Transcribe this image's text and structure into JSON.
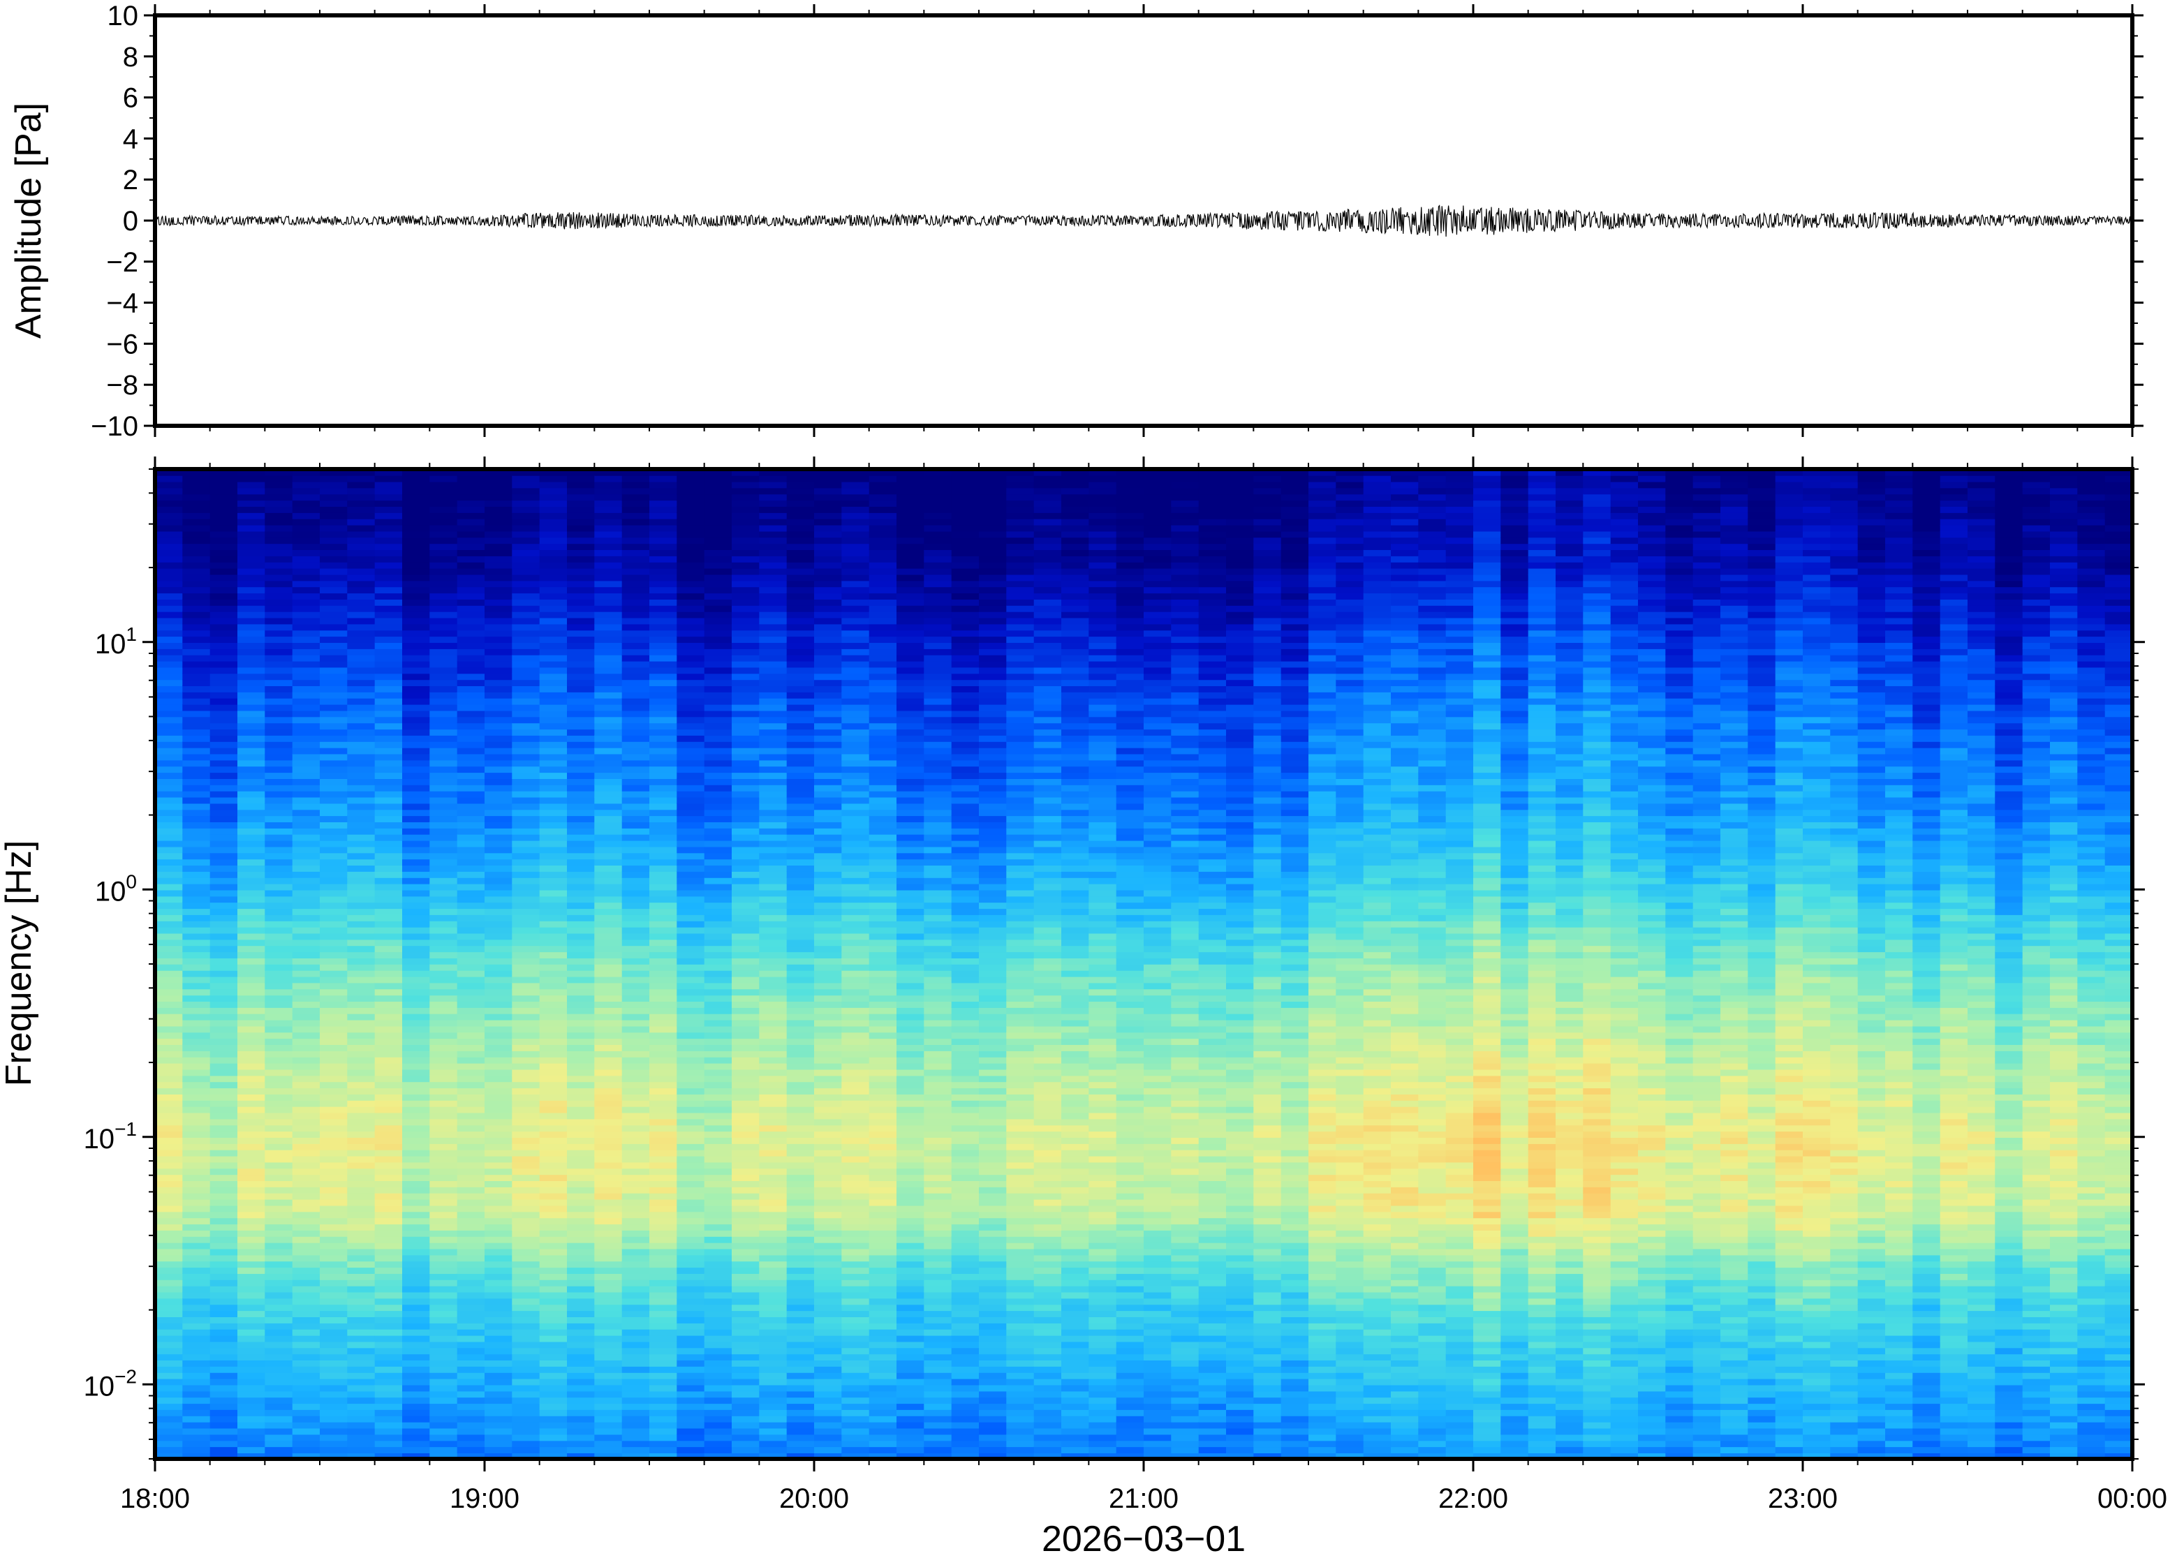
{
  "chart_data": [
    {
      "type": "line",
      "panel": "waveform",
      "ylabel": "Amplitude [Pa]",
      "xlabel": "",
      "ylim": [
        -10,
        10
      ],
      "yticks": [
        10,
        8,
        6,
        4,
        2,
        0,
        -2,
        -4,
        -6,
        -8,
        -10
      ],
      "ytick_labels": [
        "10",
        "8",
        "6",
        "4",
        "2",
        "0",
        "−2",
        "−4",
        "−6",
        "−8",
        "−10"
      ],
      "xlim": [
        "18:00",
        "00:00"
      ],
      "grid": false,
      "series": [
        {
          "color": "#000000",
          "x": [
            "18:00",
            "18:30",
            "19:00",
            "19:15",
            "19:30",
            "20:00",
            "20:15",
            "20:30",
            "21:00",
            "21:30",
            "21:45",
            "21:55",
            "22:15",
            "22:30",
            "23:00",
            "23:15",
            "23:30",
            "00:00"
          ],
          "envelope": [
            0.25,
            0.2,
            0.25,
            0.45,
            0.3,
            0.25,
            0.3,
            0.25,
            0.25,
            0.5,
            0.65,
            0.8,
            0.55,
            0.35,
            0.35,
            0.4,
            0.3,
            0.2
          ]
        }
      ]
    },
    {
      "type": "heatmap",
      "panel": "spectrogram",
      "ylabel": "Frequency [Hz]",
      "xlabel": "2026−03−01",
      "y_scale": "log",
      "ylim": [
        0.005,
        50
      ],
      "yticks": [
        10,
        1,
        0.1,
        0.01
      ],
      "ytick_labels": [
        {
          "base": "10",
          "exp": "1"
        },
        {
          "base": "10",
          "exp": "0"
        },
        {
          "base": "10",
          "exp": "−1"
        },
        {
          "base": "10",
          "exp": "−2"
        }
      ],
      "x": [
        "18:00",
        "19:00",
        "20:00",
        "21:00",
        "22:00",
        "23:00",
        "00:00"
      ],
      "xtick_labels": [
        "18:00",
        "19:00",
        "20:00",
        "21:00",
        "22:00",
        "23:00",
        "00:00"
      ],
      "colormap": "jet",
      "colormap_stops": [
        "#00007f",
        "#0010c8",
        "#0060ff",
        "#1ab4ff",
        "#4ee0e0",
        "#a8f0b0",
        "#f0f08a",
        "#ffc060",
        "#ff8c30"
      ],
      "intensity_profile": {
        "frequencies_hz": [
          50,
          20,
          10,
          5,
          2,
          1,
          0.5,
          0.2,
          0.1,
          0.05,
          0.03,
          0.02,
          0.01,
          0.005
        ],
        "relative_level": [
          0.0,
          0.08,
          0.18,
          0.26,
          0.33,
          0.42,
          0.55,
          0.66,
          0.73,
          0.7,
          0.55,
          0.47,
          0.38,
          0.3
        ]
      },
      "activity_by_hour": {
        "x": [
          "18:00",
          "18:30",
          "19:00",
          "19:30",
          "20:00",
          "20:30",
          "21:00",
          "21:20",
          "21:40",
          "22:00",
          "22:20",
          "22:40",
          "23:00",
          "23:30",
          "00:00"
        ],
        "relative_level": [
          0.55,
          0.4,
          0.5,
          0.55,
          0.35,
          0.5,
          0.55,
          0.4,
          0.8,
          1.0,
          0.85,
          0.7,
          0.65,
          0.5,
          0.45
        ]
      },
      "grid": false
    }
  ]
}
